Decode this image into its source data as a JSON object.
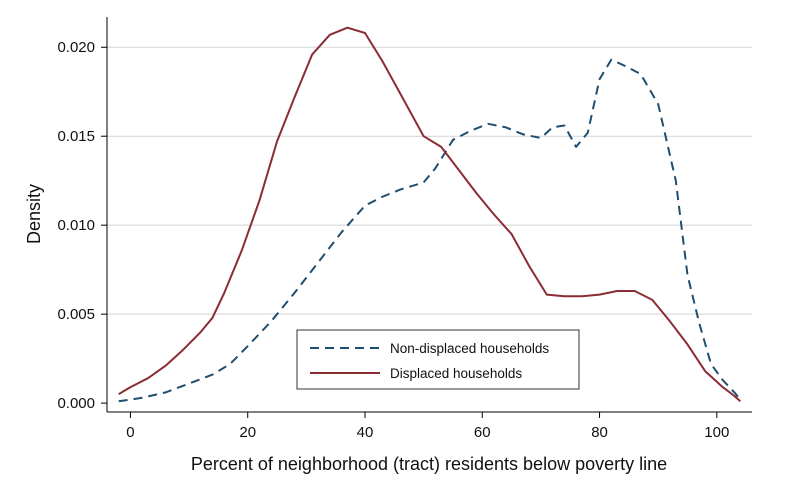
{
  "chart_data": {
    "type": "line",
    "title": "",
    "xlabel": "Percent of neighborhood (tract) residents below poverty line",
    "ylabel": "Density",
    "xlim": [
      -4,
      106
    ],
    "ylim": [
      -0.0005,
      0.0217
    ],
    "x_ticks": [
      0,
      20,
      40,
      60,
      80,
      100
    ],
    "x_tick_labels": [
      "0",
      "20",
      "40",
      "60",
      "80",
      "100"
    ],
    "y_ticks": [
      0,
      0.005,
      0.01,
      0.015,
      0.02
    ],
    "y_tick_labels": [
      "0.000",
      "0.005",
      "0.010",
      "0.015",
      "0.020"
    ],
    "grid": "horizontal",
    "legend_position": "bottom-center inside plot",
    "series": [
      {
        "name": "Non-displaced households",
        "style": "dashed",
        "color": "#1f4e6e",
        "x": [
          -2,
          2,
          6,
          10,
          14,
          17,
          20,
          24,
          28,
          32,
          36,
          40,
          43,
          46,
          50,
          52,
          55,
          58,
          61,
          64,
          67,
          70,
          72,
          74,
          76,
          78,
          80,
          82,
          84,
          87,
          90,
          93,
          95,
          97,
          99,
          101,
          103,
          104
        ],
        "y": [
          0.0001,
          0.0003,
          0.0006,
          0.0011,
          0.0016,
          0.0022,
          0.0032,
          0.0046,
          0.0062,
          0.0079,
          0.0096,
          0.0111,
          0.0116,
          0.012,
          0.0124,
          0.0132,
          0.0148,
          0.0153,
          0.0157,
          0.0155,
          0.0151,
          0.0149,
          0.0155,
          0.0156,
          0.0144,
          0.0152,
          0.0182,
          0.0193,
          0.019,
          0.0185,
          0.0168,
          0.0125,
          0.0072,
          0.0045,
          0.0022,
          0.0013,
          0.0006,
          0.0002
        ]
      },
      {
        "name": "Displaced households",
        "style": "solid",
        "color": "#8b2c35",
        "x": [
          -2,
          0,
          3,
          6,
          9,
          12,
          14,
          16,
          19,
          22,
          25,
          28,
          31,
          34,
          37,
          40,
          43,
          46,
          50,
          53,
          56,
          59,
          62,
          65,
          68,
          71,
          74,
          77,
          80,
          83,
          86,
          89,
          92,
          95,
          98,
          101,
          103,
          104
        ],
        "y": [
          0.0005,
          0.0009,
          0.0014,
          0.0021,
          0.003,
          0.004,
          0.0048,
          0.0062,
          0.0086,
          0.0114,
          0.0147,
          0.0172,
          0.0196,
          0.0207,
          0.0211,
          0.0208,
          0.0192,
          0.0174,
          0.015,
          0.0144,
          0.0131,
          0.0118,
          0.0106,
          0.0095,
          0.0077,
          0.0061,
          0.006,
          0.006,
          0.0061,
          0.0063,
          0.0063,
          0.0058,
          0.0046,
          0.0033,
          0.0018,
          0.0009,
          0.0004,
          0.0001
        ]
      }
    ]
  }
}
